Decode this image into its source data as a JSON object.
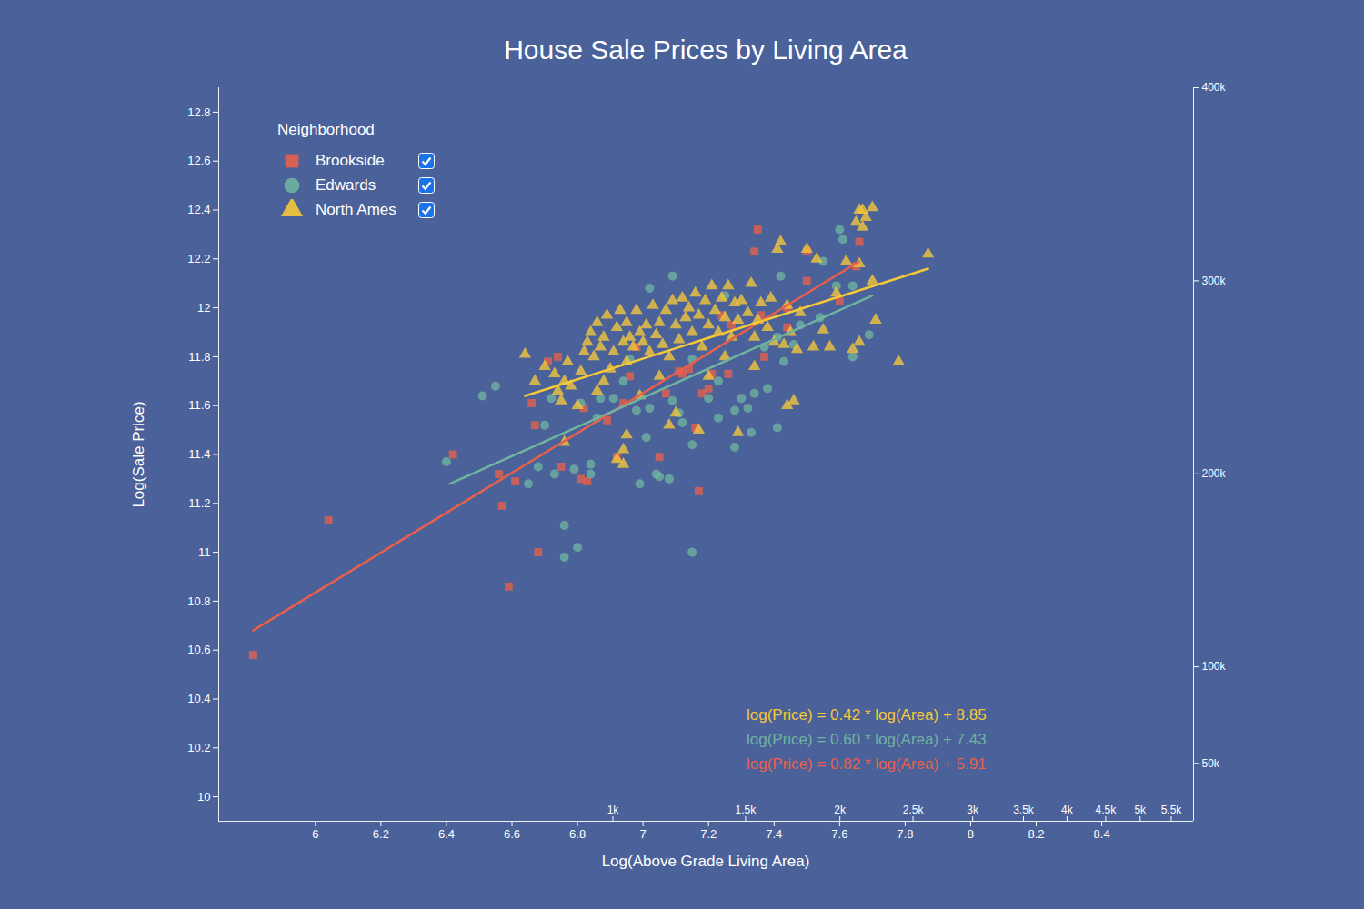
{
  "chart_data": {
    "type": "scatter",
    "title": "House Sale Prices by Living Area",
    "x_label": "Log(Above Grade Living Area)",
    "y_label": "Log(Sale Price)",
    "legend": "top-left",
    "legend_title": "Neighborhood",
    "xlim": [
      5.705,
      8.68
    ],
    "xticks": [
      6,
      6.2,
      6.4,
      6.6,
      6.8,
      7,
      7.2,
      7.4,
      7.6,
      7.8,
      8,
      8.2,
      8.4
    ],
    "x2ticks": [
      {
        "value": 6.908,
        "label": "1k"
      },
      {
        "value": 7.313,
        "label": "1.5k"
      },
      {
        "value": 7.601,
        "label": "2k"
      },
      {
        "value": 7.824,
        "label": "2.5k"
      },
      {
        "value": 8.006,
        "label": "3k"
      },
      {
        "value": 8.161,
        "label": "3.5k"
      },
      {
        "value": 8.294,
        "label": "4k"
      },
      {
        "value": 8.412,
        "label": "4.5k"
      },
      {
        "value": 8.517,
        "label": "5k"
      },
      {
        "value": 8.612,
        "label": "5.5k"
      }
    ],
    "ylim": [
      9.9,
      12.9
    ],
    "yticks": [
      10,
      10.2,
      10.4,
      10.6,
      10.8,
      11,
      11.2,
      11.4,
      11.6,
      11.8,
      12,
      12.2,
      12.4,
      12.6,
      12.8
    ],
    "y2lim": [
      20000,
      400000
    ],
    "y2ticks": [
      {
        "value": 50000,
        "label": "50k"
      },
      {
        "value": 100000,
        "label": "100k"
      },
      {
        "value": 200000,
        "label": "200k"
      },
      {
        "value": 300000,
        "label": "300k"
      },
      {
        "value": 400000,
        "label": "400k"
      }
    ],
    "series": [
      {
        "name": "Brookside",
        "color": "#e8604c",
        "marker": "square",
        "x": [
          5.81,
          6.04,
          6.42,
          6.56,
          6.57,
          6.61,
          6.59,
          6.67,
          6.66,
          6.68,
          6.71,
          6.74,
          6.75,
          6.81,
          6.83,
          6.89,
          6.92,
          6.94,
          6.96,
          6.98,
          7.07,
          7.11,
          7.14,
          7.16,
          7.17,
          7.18,
          7.2,
          7.21,
          7.24,
          7.26,
          7.27,
          7.34,
          7.35,
          7.36,
          7.37,
          7.44,
          7.44,
          7.5,
          7.5,
          7.6,
          7.66,
          7.65,
          7.05,
          7.12,
          6.82
        ],
        "values": [
          10.58,
          11.13,
          11.4,
          11.32,
          11.19,
          11.29,
          10.86,
          11.52,
          11.61,
          11.0,
          11.78,
          11.8,
          11.35,
          11.3,
          11.29,
          11.54,
          11.39,
          11.61,
          11.72,
          11.84,
          11.65,
          11.74,
          11.75,
          11.51,
          11.25,
          11.65,
          11.67,
          11.73,
          11.97,
          11.73,
          11.93,
          12.23,
          12.32,
          11.97,
          11.8,
          12.0,
          11.92,
          12.11,
          12.23,
          12.03,
          12.27,
          12.17,
          11.39,
          11.73,
          11.59
        ],
        "trend": {
          "x": [
            5.81,
            7.66
          ],
          "values": [
            10.68,
            12.19
          ]
        }
      },
      {
        "name": "Edwards",
        "color": "#6fb3a0",
        "marker": "circle",
        "x": [
          6.4,
          6.51,
          6.55,
          6.65,
          6.7,
          6.68,
          6.72,
          6.73,
          6.76,
          6.76,
          6.8,
          6.79,
          6.84,
          6.84,
          6.81,
          6.86,
          6.87,
          6.91,
          6.94,
          6.96,
          6.99,
          7.01,
          7.02,
          7.04,
          7.05,
          7.08,
          7.09,
          7.09,
          7.02,
          7.11,
          7.12,
          7.15,
          7.15,
          7.2,
          7.23,
          7.28,
          7.28,
          7.3,
          7.32,
          7.33,
          7.34,
          7.37,
          7.38,
          7.41,
          7.42,
          7.41,
          7.46,
          7.43,
          7.48,
          7.54,
          7.55,
          7.6,
          7.61,
          7.59,
          7.64,
          7.69,
          7.64,
          7.23,
          7.15,
          6.98,
          7.25
        ],
        "values": [
          11.37,
          11.64,
          11.68,
          11.28,
          11.52,
          11.35,
          11.63,
          11.32,
          11.11,
          10.98,
          11.02,
          11.34,
          11.32,
          11.36,
          11.61,
          11.55,
          11.63,
          11.63,
          11.7,
          11.79,
          11.28,
          11.47,
          11.59,
          11.32,
          11.31,
          11.3,
          11.62,
          12.13,
          12.08,
          11.57,
          11.53,
          11.0,
          11.44,
          11.63,
          11.55,
          11.43,
          11.58,
          11.63,
          11.59,
          11.49,
          11.65,
          11.84,
          11.67,
          11.51,
          12.13,
          11.88,
          11.85,
          11.78,
          11.93,
          11.96,
          12.19,
          12.32,
          12.28,
          12.09,
          12.09,
          11.89,
          11.8,
          11.7,
          11.79,
          11.58,
          12.05
        ],
        "trend": {
          "x": [
            6.41,
            7.7
          ],
          "values": [
            11.28,
            12.05
          ]
        }
      },
      {
        "name": "North Ames",
        "color": "#f5c83a",
        "marker": "triangle",
        "x": [
          6.64,
          6.67,
          6.7,
          6.73,
          6.74,
          6.75,
          6.76,
          6.77,
          6.78,
          6.8,
          6.81,
          6.82,
          6.83,
          6.84,
          6.85,
          6.86,
          6.87,
          6.88,
          6.89,
          6.9,
          6.91,
          6.92,
          6.93,
          6.94,
          6.95,
          6.95,
          6.96,
          6.97,
          6.98,
          6.99,
          7.0,
          7.01,
          7.02,
          7.03,
          7.04,
          7.05,
          7.06,
          7.07,
          7.08,
          7.09,
          7.1,
          7.11,
          7.12,
          7.13,
          7.14,
          7.15,
          7.16,
          7.17,
          7.18,
          7.19,
          7.2,
          7.21,
          7.22,
          7.23,
          7.24,
          7.25,
          7.26,
          7.27,
          7.28,
          7.29,
          7.3,
          7.32,
          7.33,
          7.34,
          7.35,
          7.36,
          7.38,
          7.39,
          7.4,
          7.41,
          7.42,
          7.43,
          7.44,
          7.45,
          7.46,
          7.47,
          7.48,
          7.5,
          7.52,
          7.53,
          7.55,
          7.57,
          7.59,
          7.62,
          7.64,
          7.66,
          7.65,
          7.66,
          7.68,
          7.67,
          7.7,
          7.67,
          7.66,
          7.7,
          7.71,
          7.78,
          7.87,
          6.94,
          6.94,
          6.95,
          6.92,
          7.17,
          7.29,
          6.76,
          7.44,
          6.88,
          6.99,
          7.1,
          7.08,
          7.2,
          7.05,
          6.86,
          7.34,
          7.25
        ],
        "values": [
          11.81,
          11.7,
          11.76,
          11.73,
          11.66,
          11.62,
          11.7,
          11.78,
          11.68,
          11.6,
          11.74,
          11.82,
          11.86,
          11.9,
          11.8,
          11.94,
          11.84,
          11.88,
          11.97,
          11.75,
          11.82,
          11.92,
          11.99,
          11.86,
          11.78,
          11.94,
          11.88,
          11.84,
          11.99,
          11.9,
          11.86,
          11.93,
          11.82,
          12.01,
          11.89,
          11.94,
          11.85,
          11.99,
          11.8,
          12.03,
          11.93,
          11.87,
          12.04,
          11.96,
          12.0,
          11.9,
          12.06,
          11.97,
          11.84,
          12.03,
          11.93,
          12.09,
          11.99,
          11.9,
          12.04,
          11.96,
          12.09,
          11.88,
          12.02,
          11.95,
          12.03,
          11.98,
          12.1,
          11.88,
          11.95,
          12.02,
          11.92,
          12.04,
          11.86,
          12.24,
          12.27,
          11.85,
          12.01,
          11.9,
          11.62,
          11.83,
          11.98,
          12.24,
          11.84,
          12.2,
          11.91,
          11.84,
          12.06,
          12.19,
          11.83,
          11.86,
          12.35,
          12.4,
          12.37,
          12.4,
          12.41,
          12.33,
          12.18,
          12.11,
          11.95,
          11.78,
          12.22,
          11.42,
          11.36,
          11.48,
          11.38,
          11.5,
          11.49,
          11.45,
          11.6,
          11.7,
          11.64,
          11.57,
          11.52,
          11.72,
          11.72,
          11.66,
          11.76,
          11.8
        ],
        "trend": {
          "x": [
            6.64,
            7.87
          ],
          "values": [
            11.64,
            12.16
          ]
        }
      }
    ],
    "annotations": [
      {
        "text": "log(Price) = 0.42 * log(Area) + 8.85",
        "color": "#f5c83a"
      },
      {
        "text": "log(Price) = 0.60 * log(Area) + 7.43",
        "color": "#6fb3a0"
      },
      {
        "text": "log(Price) = 0.82 * log(Area) + 5.91",
        "color": "#e8604c"
      }
    ]
  }
}
